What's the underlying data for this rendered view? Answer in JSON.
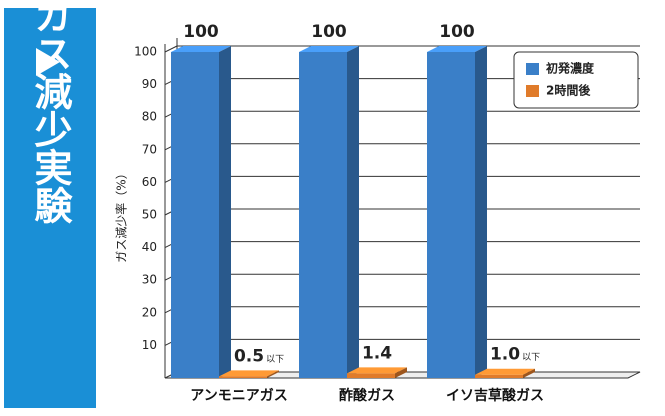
{
  "panel": {
    "title": "ガス減少実験"
  },
  "chart_data": {
    "type": "bar",
    "ylabel": "ガス減少率（%）",
    "categories": [
      "アンモニアガス",
      "酢酸ガス",
      "イソ吉草酸ガス"
    ],
    "series": [
      {
        "name": "初発濃度",
        "color": "#3a7fc8",
        "values": [
          100,
          100,
          100
        ]
      },
      {
        "name": "2時間後",
        "color": "#e07b2a",
        "values": [
          0.5,
          1.4,
          1
        ],
        "value_labels": [
          "0.5",
          "1.4",
          "1.0"
        ],
        "value_label_notes": [
          "以下",
          null,
          "以下"
        ]
      }
    ],
    "ylim": [
      0,
      100
    ],
    "yticks": [
      10,
      20,
      30,
      40,
      50,
      60,
      70,
      80,
      90,
      100
    ],
    "grid": true,
    "legend": "upper right"
  }
}
